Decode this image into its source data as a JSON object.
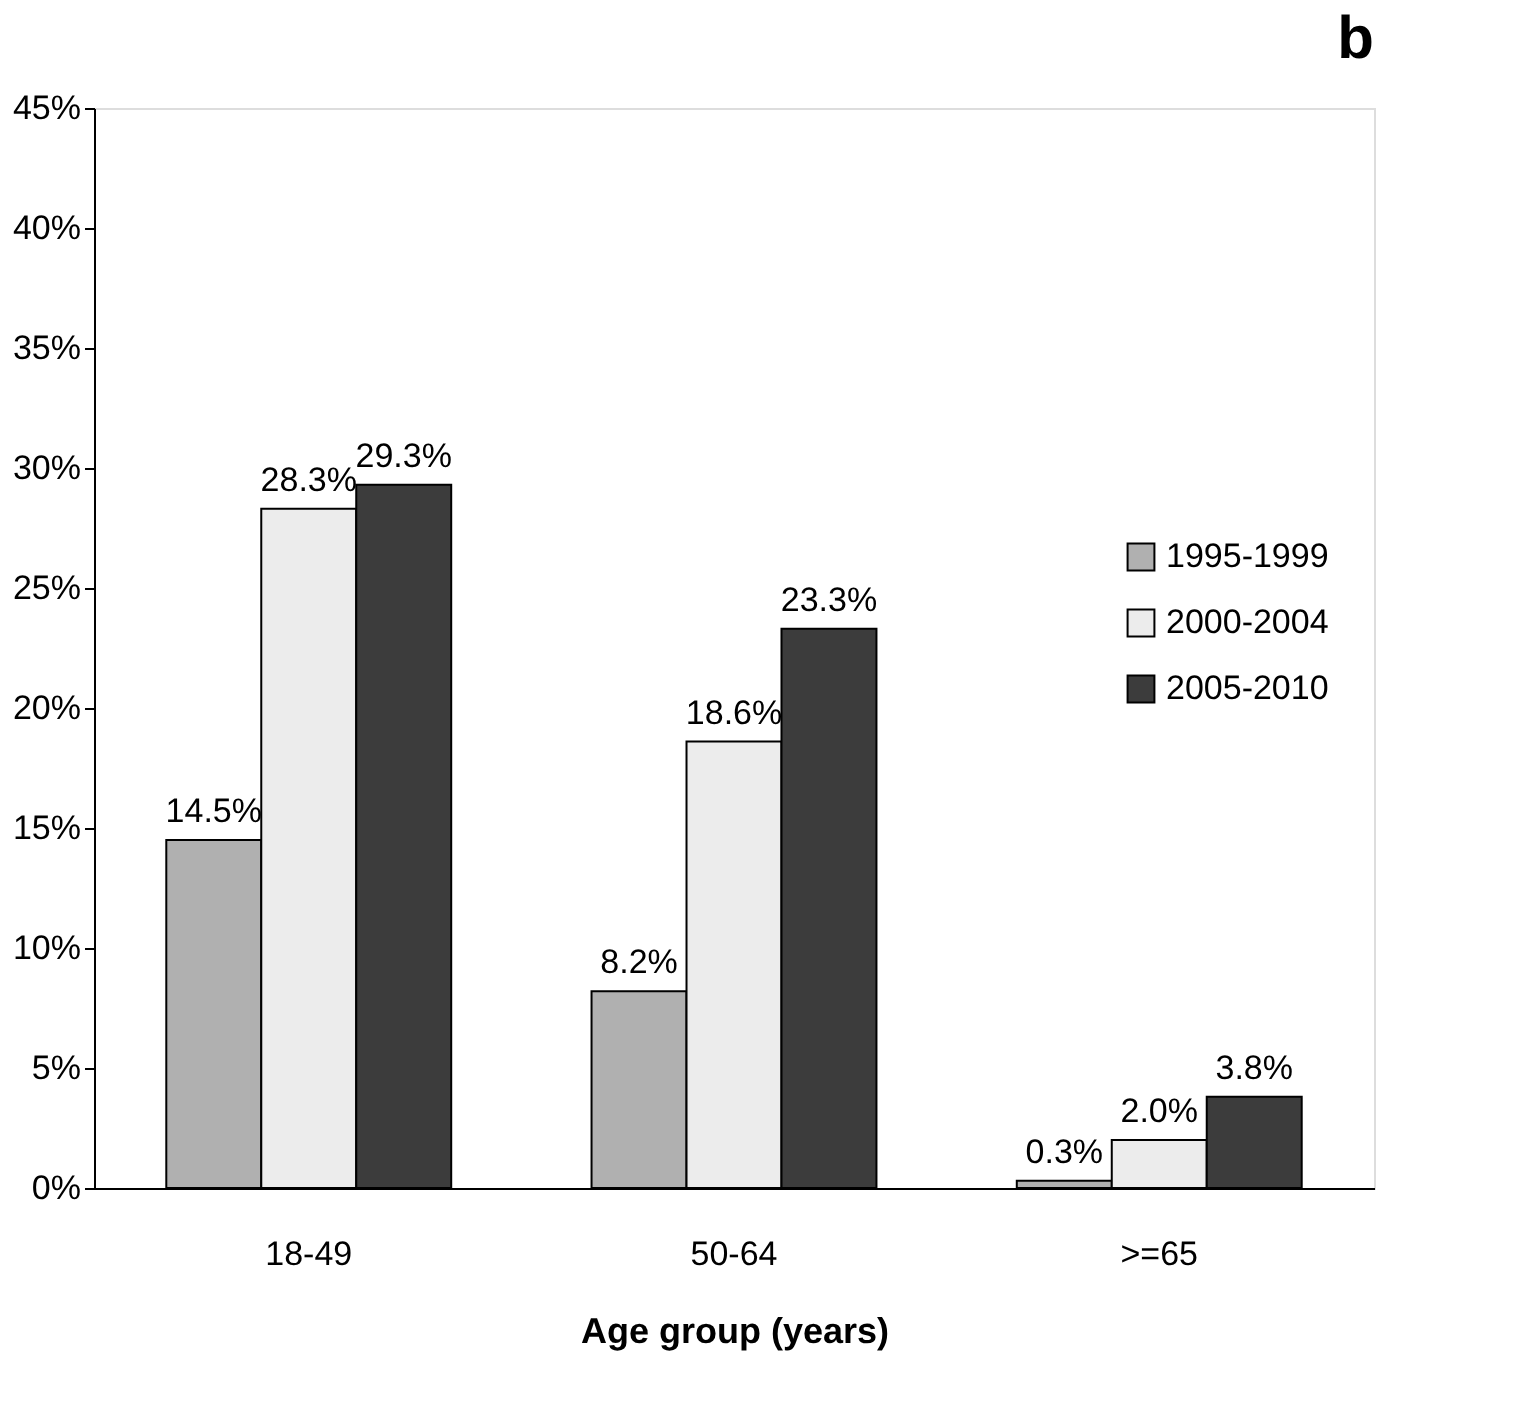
{
  "chart_data": {
    "type": "bar",
    "title": "b",
    "xlabel": "Age group (years)",
    "categories": [
      "18-49",
      "50-64",
      ">=65"
    ],
    "series": [
      {
        "name": "1995-1999",
        "color": "#b0b0b0",
        "values": [
          14.5,
          8.2,
          0.3
        ],
        "value_labels": [
          "14.5%",
          "8.2%",
          "0.3%"
        ]
      },
      {
        "name": "2000-2004",
        "color": "#ececec",
        "values": [
          28.3,
          18.6,
          2.0
        ],
        "value_labels": [
          "28.3%",
          "18.6%",
          "2.0%"
        ]
      },
      {
        "name": "2005-2010",
        "color": "#3c3c3c",
        "values": [
          29.3,
          23.3,
          3.8
        ],
        "value_labels": [
          "29.3%",
          "23.3%",
          "3.8%"
        ]
      }
    ],
    "ylim": [
      0,
      45
    ],
    "yticks": [
      {
        "value": 0,
        "label": "0%"
      },
      {
        "value": 5,
        "label": "5%"
      },
      {
        "value": 10,
        "label": "10%"
      },
      {
        "value": 15,
        "label": "15%"
      },
      {
        "value": 20,
        "label": "20%"
      },
      {
        "value": 25,
        "label": "25%"
      },
      {
        "value": 30,
        "label": "30%"
      },
      {
        "value": 35,
        "label": "35%"
      },
      {
        "value": 40,
        "label": "40%"
      },
      {
        "value": 45,
        "label": "45%"
      }
    ],
    "grid": false,
    "legend": "right"
  }
}
